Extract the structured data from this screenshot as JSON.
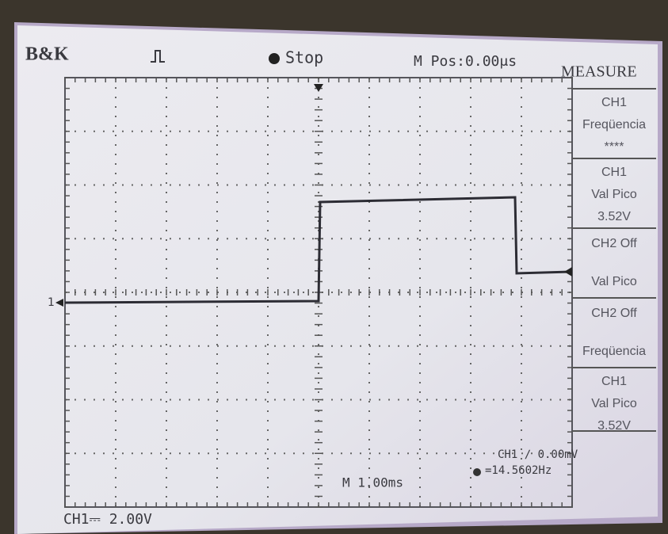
{
  "header": {
    "brand": "B&K",
    "status": "Stop",
    "position": "M Pos:0.00μs",
    "menu": "MEASURE"
  },
  "measure": [
    {
      "lines": [
        "CH1",
        "Freqüencia",
        "****"
      ]
    },
    {
      "lines": [
        "CH1",
        "Val Pico",
        "3.52V"
      ]
    },
    {
      "lines": [
        "CH2 Off",
        "Val Pico"
      ]
    },
    {
      "lines": [
        "CH2 Off",
        "Freqüencia"
      ]
    },
    {
      "lines": [
        "CH1",
        "Val Pico",
        "3.52V"
      ]
    }
  ],
  "trace": {
    "channel_marker": "1"
  },
  "footer": {
    "ch1_scale": "CH1⎓ 2.00V",
    "timebase": "M 1.00ms",
    "trigger": "CH1 ∕ 0.00mV",
    "frequency": "=14.5602Hz"
  }
}
